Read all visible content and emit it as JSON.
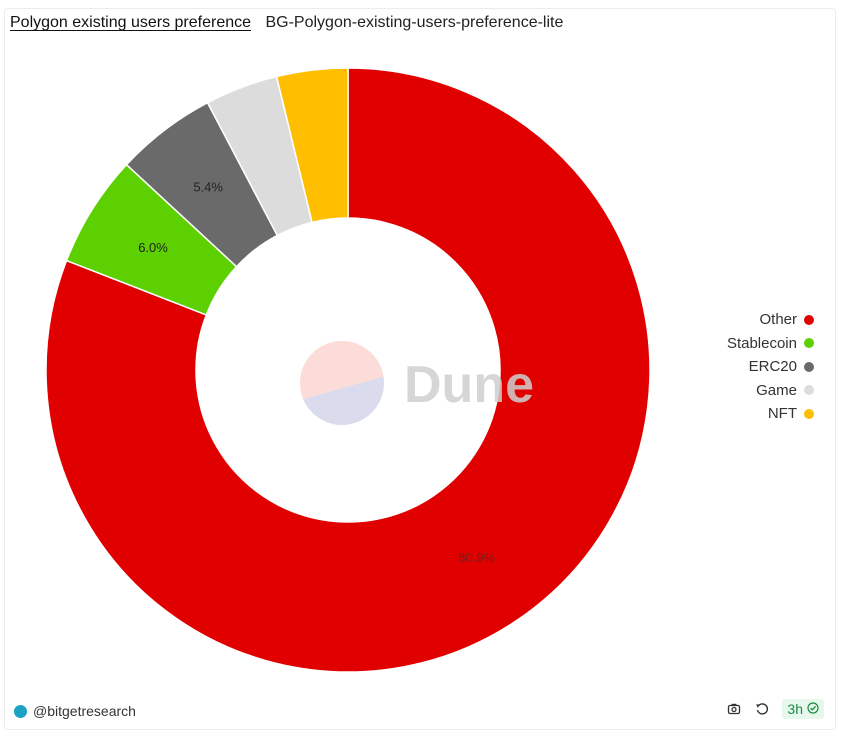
{
  "header": {
    "title": "Polygon existing users preference",
    "subtitle": "BG-Polygon-existing-users-preference-lite"
  },
  "watermark": {
    "text": "Dune"
  },
  "chart_data": {
    "type": "pie",
    "donut": true,
    "slices": [
      {
        "label": "Other",
        "value": 80.9,
        "color": "#e00000",
        "data_label": "80.9%"
      },
      {
        "label": "Stablecoin",
        "value": 6.0,
        "color": "#5cd000",
        "data_label": "6.0%"
      },
      {
        "label": "ERC20",
        "value": 5.4,
        "color": "#6a6a6a",
        "data_label": "5.4%"
      },
      {
        "label": "Game",
        "value": 3.9,
        "color": "#dcdcdc",
        "data_label": ""
      },
      {
        "label": "NFT",
        "value": 3.8,
        "color": "#ffbf00",
        "data_label": ""
      }
    ],
    "legend_position": "right"
  },
  "legend": [
    {
      "label": "Other",
      "color": "#e00000"
    },
    {
      "label": "Stablecoin",
      "color": "#5cd000"
    },
    {
      "label": "ERC20",
      "color": "#6a6a6a"
    },
    {
      "label": "Game",
      "color": "#dcdcdc"
    },
    {
      "label": "NFT",
      "color": "#ffbf00"
    }
  ],
  "footer": {
    "author": "@bitgetresearch",
    "refresh_age": "3h",
    "icons": [
      "camera-icon",
      "refresh-icon",
      "check-circle-icon"
    ]
  }
}
